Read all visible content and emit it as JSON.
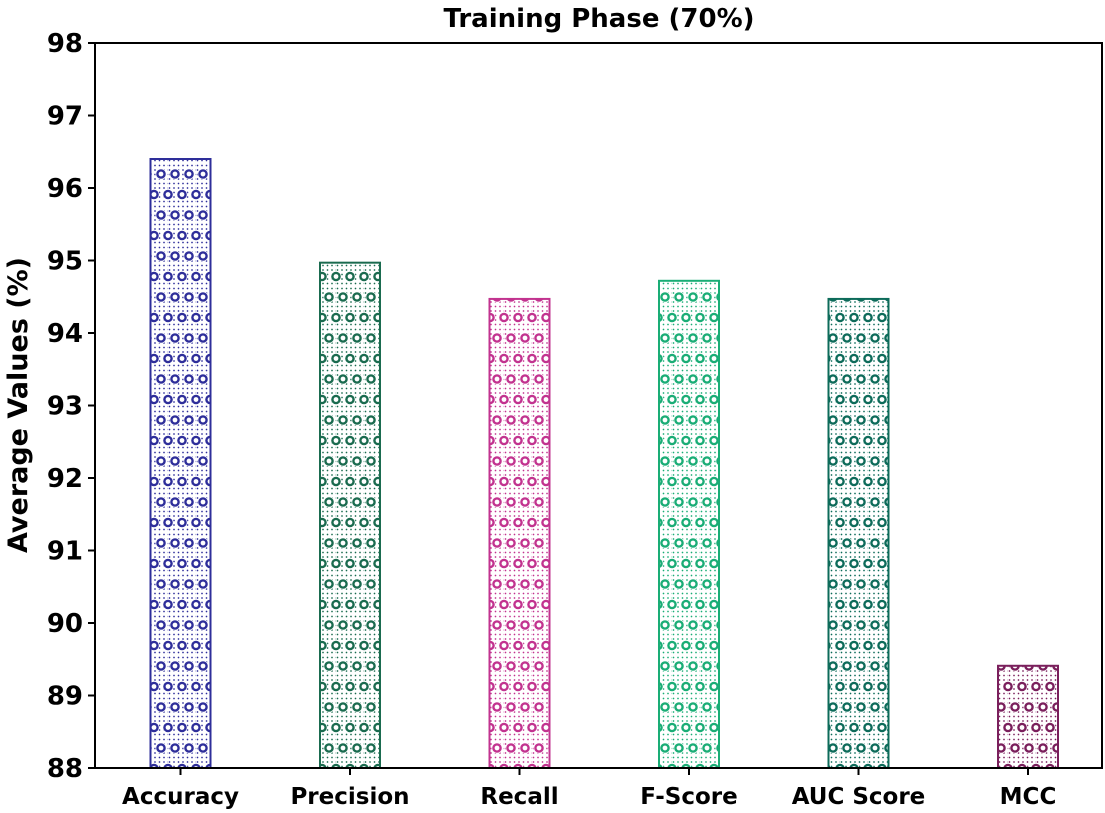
{
  "chart_data": {
    "type": "bar",
    "title": "Training Phase (70%)",
    "xlabel": "",
    "ylabel": "Average Values (%)",
    "categories": [
      "Accuracy",
      "Precision",
      "Recall",
      "F-Score",
      "AUC Score",
      "MCC"
    ],
    "values": [
      96.4,
      94.97,
      94.47,
      94.72,
      94.47,
      89.41
    ],
    "ylim": [
      88,
      98
    ],
    "yticks": [
      "88",
      "89",
      "90",
      "91",
      "92",
      "93",
      "94",
      "95",
      "96",
      "97",
      "98"
    ],
    "colors": [
      "#2e2e9a",
      "#1a6b4f",
      "#c2338f",
      "#1aad76",
      "#0d6b5a",
      "#7a1f5c"
    ],
    "bar_fill_hatch": "dots-and-circles",
    "grid": false,
    "legend": "none"
  }
}
